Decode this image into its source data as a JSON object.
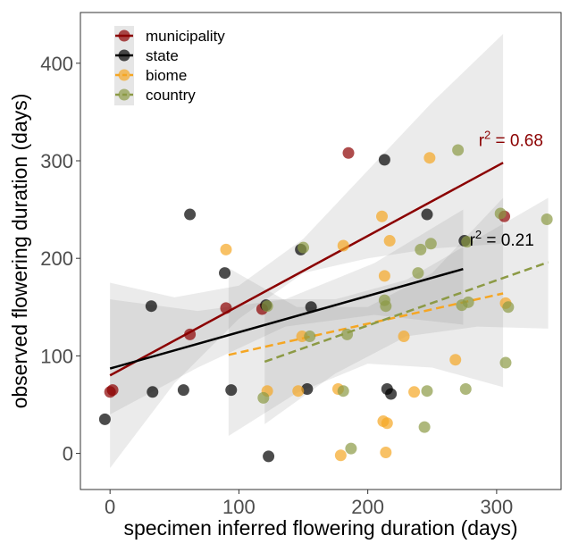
{
  "chart_data": {
    "type": "scatter",
    "xlabel": "specimen inferred flowering duration (days)",
    "ylabel": "observed flowering duration (days)",
    "xlim": [
      -23,
      350
    ],
    "ylim": [
      -37,
      452
    ],
    "xticks": [
      0,
      100,
      200,
      300
    ],
    "yticks": [
      0,
      100,
      200,
      300,
      400
    ],
    "grid": false,
    "legend_position": "top-left",
    "series": [
      {
        "name": "municipality",
        "color": "#8b0000",
        "dashed": false,
        "points": [
          [
            0,
            63
          ],
          [
            2,
            65
          ],
          [
            62,
            122
          ],
          [
            90,
            149
          ],
          [
            118,
            148
          ],
          [
            185,
            308
          ],
          [
            306,
            243
          ]
        ],
        "fit": {
          "x0": 0,
          "y0": 80,
          "x1": 305,
          "y1": 298
        },
        "band": {
          "lo": [
            [
              0,
              -15
            ],
            [
              50,
              72
            ],
            [
              100,
              138
            ],
            [
              150,
              185
            ],
            [
              200,
              200
            ],
            [
              250,
              210
            ],
            [
              305,
              215
            ]
          ],
          "hi": [
            [
              0,
              175
            ],
            [
              50,
              160
            ],
            [
              100,
              172
            ],
            [
              150,
              220
            ],
            [
              200,
              290
            ],
            [
              250,
              360
            ],
            [
              305,
              430
            ]
          ]
        }
      },
      {
        "name": "state",
        "color": "#000000",
        "dashed": false,
        "points": [
          [
            -4,
            35
          ],
          [
            32,
            151
          ],
          [
            33,
            63
          ],
          [
            57,
            65
          ],
          [
            62,
            245
          ],
          [
            89,
            185
          ],
          [
            94,
            65
          ],
          [
            121,
            152
          ],
          [
            123,
            -3
          ],
          [
            148,
            209
          ],
          [
            153,
            66
          ],
          [
            156,
            150
          ],
          [
            213,
            301
          ],
          [
            215,
            66
          ],
          [
            218,
            61
          ],
          [
            246,
            245
          ],
          [
            275,
            218
          ]
        ],
        "fit": {
          "x0": 0,
          "y0": 87,
          "x1": 274,
          "y1": 189
        },
        "band": {
          "lo": [
            [
              0,
              40
            ],
            [
              68,
              88
            ],
            [
              136,
              130
            ],
            [
              205,
              142
            ],
            [
              274,
              132
            ]
          ],
          "hi": [
            [
              0,
              158
            ],
            [
              68,
              146
            ],
            [
              136,
              158
            ],
            [
              205,
              195
            ],
            [
              274,
              250
            ]
          ]
        }
      },
      {
        "name": "biome",
        "color": "#f5a623",
        "dashed": true,
        "points": [
          [
            90,
            209
          ],
          [
            122,
            64
          ],
          [
            146,
            64
          ],
          [
            149,
            120
          ],
          [
            177,
            66
          ],
          [
            179,
            -2
          ],
          [
            181,
            213
          ],
          [
            211,
            243
          ],
          [
            212,
            33
          ],
          [
            213,
            182
          ],
          [
            214,
            1
          ],
          [
            215,
            31
          ],
          [
            217,
            218
          ],
          [
            228,
            120
          ],
          [
            236,
            63
          ],
          [
            248,
            303
          ],
          [
            268,
            96
          ],
          [
            307,
            154
          ]
        ],
        "fit": {
          "x0": 92,
          "y0": 101,
          "x1": 305,
          "y1": 164
        },
        "band": {
          "lo": [
            [
              92,
              18
            ],
            [
              145,
              62
            ],
            [
              200,
              92
            ],
            [
              250,
              88
            ],
            [
              305,
              68
            ]
          ],
          "hi": [
            [
              92,
              190
            ],
            [
              145,
              150
            ],
            [
              200,
              150
            ],
            [
              250,
              185
            ],
            [
              305,
              262
            ]
          ]
        }
      },
      {
        "name": "country",
        "color": "#8c9a45",
        "dashed": true,
        "points": [
          [
            119,
            57
          ],
          [
            122,
            151
          ],
          [
            150,
            211
          ],
          [
            155,
            120
          ],
          [
            181,
            64
          ],
          [
            184,
            122
          ],
          [
            187,
            5
          ],
          [
            213,
            157
          ],
          [
            214,
            151
          ],
          [
            239,
            185
          ],
          [
            241,
            209
          ],
          [
            244,
            27
          ],
          [
            246,
            64
          ],
          [
            249,
            215
          ],
          [
            270,
            311
          ],
          [
            273,
            152
          ],
          [
            276,
            66
          ],
          [
            277,
            217
          ],
          [
            278,
            155
          ],
          [
            303,
            246
          ],
          [
            307,
            93
          ],
          [
            309,
            150
          ],
          [
            339,
            240
          ]
        ],
        "fit": {
          "x0": 120,
          "y0": 94,
          "x1": 340,
          "y1": 196
        },
        "band": {
          "lo": [
            [
              120,
              30
            ],
            [
              175,
              82
            ],
            [
              230,
              120
            ],
            [
              285,
              130
            ],
            [
              340,
              128
            ]
          ],
          "hi": [
            [
              120,
              158
            ],
            [
              175,
              158
            ],
            [
              230,
              178
            ],
            [
              285,
              220
            ],
            [
              340,
              262
            ]
          ]
        }
      }
    ],
    "annotations": [
      {
        "base": "r",
        "sup": "2",
        "rest": " = 0.68",
        "color": "#8b0000",
        "x": 286,
        "y": 315
      },
      {
        "base": "r",
        "sup": "2",
        "rest": " = 0.21",
        "color": "#000000",
        "x": 279,
        "y": 213
      }
    ]
  }
}
